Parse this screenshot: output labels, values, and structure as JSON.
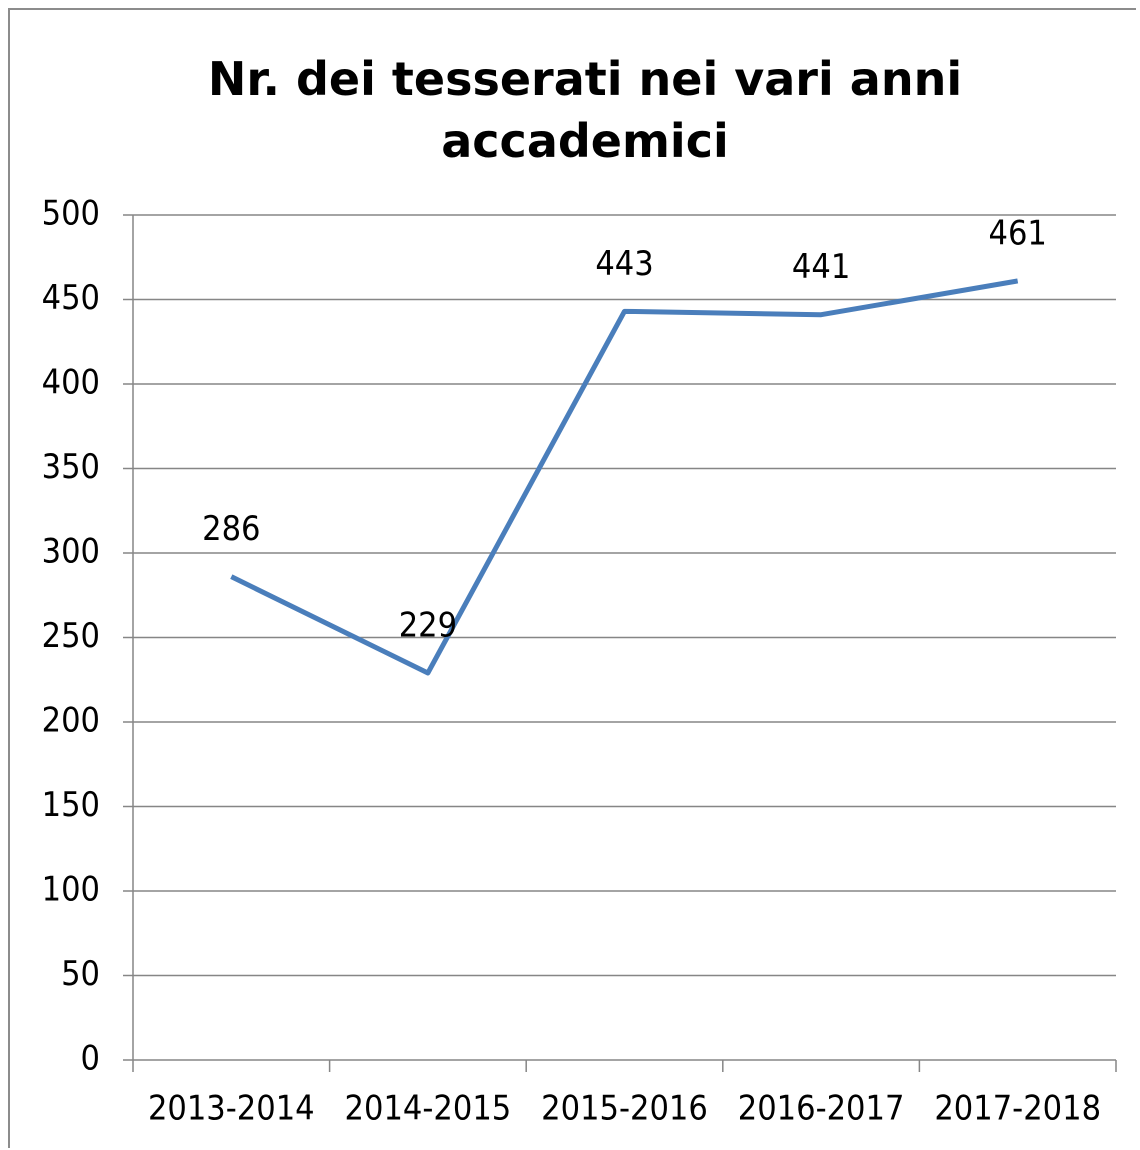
{
  "chart_data": {
    "type": "line",
    "title": "Nr. dei tesserati nei vari anni accademici",
    "categories": [
      "2013-2014",
      "2014-2015",
      "2015-2016",
      "2016-2017",
      "2017-2018"
    ],
    "series": [
      {
        "name": "Nr. dei tesserati",
        "color": "#4a7ebb",
        "values": [
          286,
          229,
          443,
          441,
          461
        ]
      }
    ],
    "ylim": [
      0,
      500
    ],
    "yticks": [
      0,
      50,
      100,
      150,
      200,
      250,
      300,
      350,
      400,
      450,
      500
    ],
    "grid": true
  }
}
